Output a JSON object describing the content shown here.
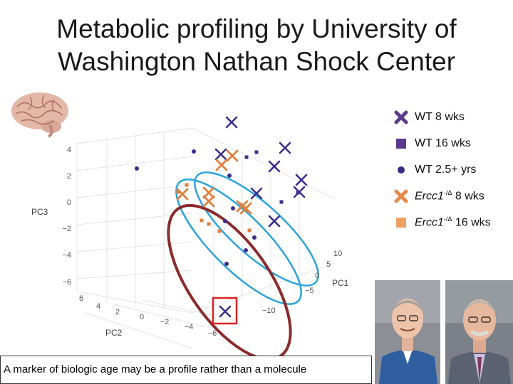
{
  "title_line1": "Metabolic profiling by University of",
  "title_line2": "Washington Nathan Shock Center",
  "caption": "A marker of biologic age may be a profile rather than a molecule",
  "legend": [
    {
      "label": "WT 8 wks",
      "marker": "x-thick",
      "color": "#5b3a8e"
    },
    {
      "label": "WT 16 wks",
      "marker": "square",
      "color": "#5b3a8e"
    },
    {
      "label": "WT 2.5+ yrs",
      "marker": "circle",
      "color": "#3b2a86"
    },
    {
      "label": "Ercc1",
      "sup": "-/Δ",
      "tail": " 8 wks",
      "marker": "x-thick",
      "color": "#e8894a"
    },
    {
      "label": "Ercc1",
      "sup": "-/Δ",
      "tail": " 16 wks",
      "marker": "square",
      "color": "#f0a060"
    }
  ],
  "colors": {
    "wt": "#3d2f8f",
    "ercc1": "#e08040",
    "ellipse_blue": "#2aa4dc",
    "ellipse_red": "#8b2b2b",
    "highlight_box": "#dd2222"
  },
  "chart_data": {
    "type": "scatter",
    "title": "",
    "axes": {
      "PC1": {
        "label": "PC1",
        "ticks": [
          "10",
          "5",
          "0",
          "−5",
          "−10"
        ]
      },
      "PC2": {
        "label": "PC2",
        "ticks": [
          "6",
          "4",
          "2",
          "0",
          "−2",
          "−4",
          "−6"
        ]
      },
      "PC3": {
        "label": "PC3",
        "ticks": [
          "4",
          "2",
          "0",
          "−2",
          "−4",
          "−6"
        ]
      }
    },
    "series": [
      {
        "name": "WT 8 wks",
        "marker": "x"
      },
      {
        "name": "WT 16 wks",
        "marker": "square"
      },
      {
        "name": "WT 2.5+ yrs",
        "marker": "circle"
      },
      {
        "name": "Ercc1-/Δ 8 wks",
        "marker": "x"
      },
      {
        "name": "Ercc1-/Δ 16 wks",
        "marker": "square"
      }
    ]
  }
}
